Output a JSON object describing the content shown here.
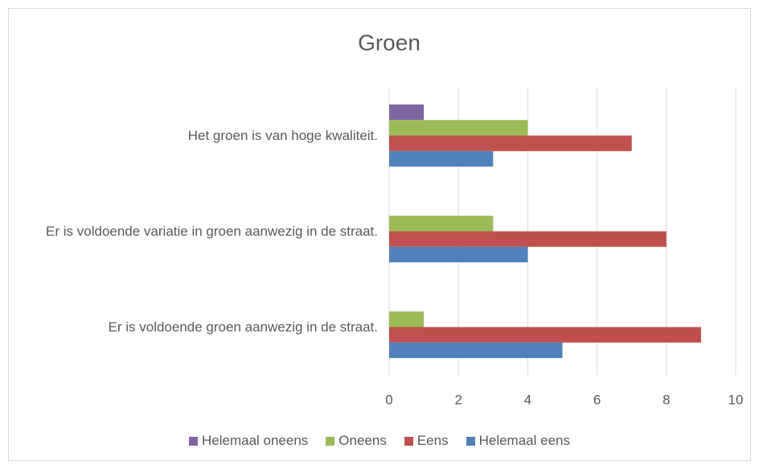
{
  "chart_data": {
    "type": "bar",
    "orientation": "horizontal",
    "title": "Groen",
    "categories": [
      "Het groen is van hoge kwaliteit.",
      "Er is voldoende variatie in groen aanwezig in de straat.",
      "Er is voldoende groen aanwezig in de straat."
    ],
    "series": [
      {
        "name": "Helemaal oneens",
        "color": "#8064a2",
        "values": [
          1,
          null,
          null
        ]
      },
      {
        "name": "Oneens",
        "color": "#9bbb59",
        "values": [
          4,
          3,
          1
        ]
      },
      {
        "name": "Eens",
        "color": "#c0504d",
        "values": [
          7,
          8,
          9
        ]
      },
      {
        "name": "Helemaal eens",
        "color": "#4f81bd",
        "values": [
          3,
          4,
          5
        ]
      }
    ],
    "xlim": [
      0,
      10
    ],
    "xticks": [
      0,
      2,
      4,
      6,
      8,
      10
    ],
    "grid": true,
    "legend": "bottom"
  }
}
